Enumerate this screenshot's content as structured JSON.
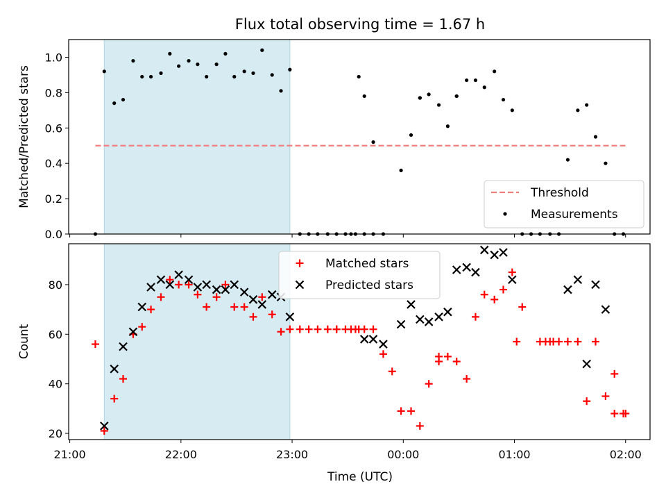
{
  "chart_data": {
    "title": "Flux total observing time = 1.67 h",
    "xlabel": "Time (UTC)",
    "x_tick_labels": [
      "21:00",
      "22:00",
      "23:00",
      "00:00",
      "01:00",
      "02:00"
    ],
    "x_ticks_hours": [
      21,
      22,
      23,
      24,
      25,
      26
    ],
    "xlim_hours": [
      20.99,
      26.22
    ],
    "shaded_interval_hours": [
      21.31,
      22.98
    ],
    "shade_color": "#add8e6",
    "panels": [
      {
        "type": "scatter",
        "ylabel": "Matched/Predicted stars",
        "ylim": [
          0,
          1.1
        ],
        "y_ticks": [
          "0.0",
          "0.2",
          "0.4",
          "0.6",
          "0.8",
          "1.0"
        ],
        "y_tick_values": [
          0,
          0.2,
          0.4,
          0.6,
          0.8,
          1.0
        ],
        "legend_placement": "lower right",
        "threshold": {
          "name": "Threshold",
          "y": 0.5,
          "x_range": [
            21.23,
            26.0
          ],
          "color": "#f08080"
        },
        "series": [
          {
            "name": "Measurements",
            "color": "#000000",
            "marker": "dot",
            "x": [
              21.23,
              21.31,
              21.4,
              21.48,
              21.57,
              21.65,
              21.73,
              21.82,
              21.9,
              21.98,
              22.07,
              22.15,
              22.23,
              22.32,
              22.4,
              22.48,
              22.57,
              22.65,
              22.73,
              22.82,
              22.9,
              22.98,
              23.07,
              23.15,
              23.23,
              23.4,
              23.57,
              23.65,
              23.73,
              23.82,
              23.98,
              24.07,
              24.15,
              24.23,
              24.4,
              24.48,
              24.57,
              24.65,
              24.73,
              24.82,
              24.9,
              24.98,
              25.07,
              25.15,
              25.23,
              25.32,
              25.4,
              25.48,
              25.57,
              25.65,
              25.73,
              25.82,
              25.9,
              25.98
            ],
            "y": [
              0.0,
              0.92,
              0.74,
              0.76,
              0.98,
              0.89,
              0.89,
              0.91,
              1.02,
              0.95,
              0.98,
              0.96,
              0.89,
              0.96,
              1.02,
              0.89,
              0.92,
              0.91,
              1.04,
              0.9,
              0.81,
              0.93,
              0.0,
              0.0,
              0.0,
              0.0,
              0.0,
              0.0,
              0.0,
              0.0,
              0.36,
              0.56,
              0.77,
              0.79,
              0.61,
              0.78,
              0.87,
              0.87,
              0.83,
              0.92,
              0.76,
              0.7,
              0.0,
              0.0,
              0.0,
              0.0,
              0.0,
              0.42,
              0.7,
              0.73,
              0.55,
              0.4,
              0.0,
              0.0
            ],
            "extra_points": {
              "x": [
                23.48,
                23.53,
                23.32,
                23.6,
                23.65,
                23.73,
                24.15,
                24.32,
                24.48
              ],
              "y": [
                0.0,
                0.0,
                0.0,
                0.89,
                0.78,
                0.52,
                0.77,
                0.73,
                0.78
              ]
            }
          }
        ]
      },
      {
        "type": "scatter",
        "ylabel": "Count",
        "ylim": [
          17.5,
          96.5
        ],
        "y_ticks": [
          "20",
          "40",
          "60",
          "80"
        ],
        "y_tick_values": [
          20,
          40,
          60,
          80
        ],
        "legend_placement": "upper center",
        "series": [
          {
            "name": "Matched stars",
            "color": "#ff0000",
            "marker": "plus",
            "x": [
              21.23,
              21.31,
              21.4,
              21.48,
              21.57,
              21.65,
              21.73,
              21.82,
              21.9,
              21.98,
              22.07,
              22.15,
              22.23,
              22.32,
              22.4,
              22.48,
              22.57,
              22.65,
              22.73,
              22.82,
              22.9,
              22.98,
              23.07,
              23.15,
              23.23,
              23.4,
              23.57,
              23.65,
              23.73,
              23.82,
              23.9,
              23.98,
              24.07,
              24.15,
              24.23,
              24.32,
              24.4,
              24.48,
              24.57,
              24.65,
              24.73,
              24.82,
              24.9,
              24.98,
              25.07,
              25.23,
              25.32,
              25.4,
              25.48,
              25.57,
              25.65,
              25.73,
              25.82,
              25.9,
              25.98
            ],
            "y": [
              56,
              21,
              34,
              42,
              60,
              63,
              70,
              75,
              82,
              80,
              80,
              76,
              71,
              75,
              80,
              71,
              71,
              67,
              75,
              68,
              61,
              62,
              62,
              62,
              62,
              62,
              62,
              62,
              62,
              52,
              45,
              29,
              29,
              23,
              40,
              51,
              51,
              49,
              42,
              67,
              76,
              74,
              78,
              85,
              71,
              57,
              57,
              57,
              57,
              57,
              33,
              57,
              35,
              44,
              28
            ],
            "extra_points": {
              "x": [
                23.48,
                23.53,
                23.6,
                26.0,
                25.9,
                25.35,
                25.28,
                25.02,
                23.32,
                23.4,
                24.32
              ],
              "y": [
                62,
                62,
                62,
                28,
                28,
                57,
                57,
                57,
                62,
                62,
                49
              ]
            }
          },
          {
            "name": "Predicted stars",
            "color": "#000000",
            "marker": "x",
            "x": [
              21.31,
              21.4,
              21.48,
              21.57,
              21.65,
              21.73,
              21.82,
              21.9,
              21.98,
              22.07,
              22.15,
              22.23,
              22.32,
              22.4,
              22.48,
              22.57,
              22.65,
              22.73,
              22.82,
              22.9,
              22.98,
              23.65,
              23.73,
              23.82,
              23.98,
              24.07,
              24.15,
              24.23,
              24.32,
              24.4,
              24.48,
              24.57,
              24.65,
              24.73,
              24.82,
              24.9,
              24.98,
              25.48,
              25.57,
              25.65,
              25.73,
              25.82
            ],
            "y": [
              23,
              46,
              55,
              61,
              71,
              79,
              82,
              80,
              84,
              82,
              79,
              80,
              78,
              78,
              80,
              77,
              74,
              72,
              76,
              75,
              67,
              58,
              58,
              56,
              64,
              72,
              66,
              65,
              67,
              69,
              86,
              87,
              85,
              94,
              92,
              93,
              82,
              78,
              82,
              48,
              80,
              70
            ]
          }
        ]
      }
    ]
  }
}
